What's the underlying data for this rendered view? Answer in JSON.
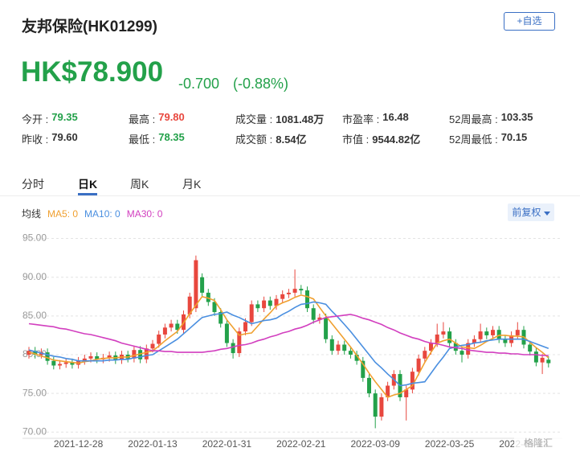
{
  "header": {
    "title": "友邦保险(HK01299)",
    "button": "+自选",
    "price": "HK$78.900",
    "change": "-0.700",
    "change_pct": "(-0.88%)",
    "color": "#23a14a"
  },
  "stats": [
    [
      {
        "label": "今开 :",
        "value": "79.35",
        "color": "#23a14a"
      },
      {
        "label": "最高 :",
        "value": "79.80",
        "color": "#e8473e"
      },
      {
        "label": "成交量 :",
        "value": "1081.48万",
        "color": "#333333"
      },
      {
        "label": "市盈率 :",
        "value": "16.48",
        "color": "#333333"
      },
      {
        "label": "52周最高 :",
        "value": "103.35",
        "color": "#333333"
      }
    ],
    [
      {
        "label": "昨收 :",
        "value": "79.60",
        "color": "#333333"
      },
      {
        "label": "最低 :",
        "value": "78.35",
        "color": "#23a14a"
      },
      {
        "label": "成交额 :",
        "value": "8.54亿",
        "color": "#333333"
      },
      {
        "label": "市值 :",
        "value": "9544.82亿",
        "color": "#333333"
      },
      {
        "label": "52周最低 :",
        "value": "70.15",
        "color": "#333333"
      }
    ]
  ],
  "tabs": [
    "分时",
    "日K",
    "周K",
    "月K"
  ],
  "active_tab": 1,
  "chart_data": {
    "type": "candlestick",
    "legend_title": "均线",
    "adjust_button": "前复权",
    "watermark": "格隆汇",
    "up_color": "#e8473e",
    "down_color": "#23a14a",
    "grid": true,
    "ylim": [
      69.2,
      96.2
    ],
    "yticks": [
      {
        "value": 95,
        "label": "95.00"
      },
      {
        "value": 90,
        "label": "90.00"
      },
      {
        "value": 85,
        "label": "85.00"
      },
      {
        "value": 80,
        "label": "80.00"
      },
      {
        "value": 75,
        "label": "75.00"
      },
      {
        "value": 70,
        "label": "70.00"
      }
    ],
    "categories": [
      null,
      null,
      null,
      null,
      null,
      null,
      null,
      null,
      "2021-12-28",
      null,
      null,
      null,
      null,
      null,
      null,
      null,
      null,
      null,
      null,
      null,
      "2022-01-13",
      null,
      null,
      null,
      null,
      null,
      null,
      null,
      null,
      null,
      null,
      null,
      "2022-01-31",
      null,
      null,
      null,
      null,
      null,
      null,
      null,
      null,
      null,
      null,
      null,
      "2022-02-21",
      null,
      null,
      null,
      null,
      null,
      null,
      null,
      null,
      null,
      null,
      null,
      "2022-03-09",
      null,
      null,
      null,
      null,
      null,
      null,
      null,
      null,
      null,
      null,
      null,
      "2022-03-25",
      null,
      null,
      null,
      null,
      null,
      null,
      null,
      null,
      null,
      null,
      null,
      "2022-04-13",
      null,
      null,
      null,
      null
    ],
    "open": [
      80.0,
      80.5,
      80.0,
      80.3,
      79.2,
      78.6,
      78.8,
      79.0,
      78.7,
      79.2,
      79.5,
      79.8,
      79.4,
      79.6,
      79.9,
      79.3,
      80.0,
      79.5,
      80.6,
      79.4,
      80.8,
      81.4,
      82.6,
      83.5,
      84.0,
      83.2,
      85.2,
      86.0,
      90.0,
      88.0,
      86.8,
      85.5,
      84.0,
      81.5,
      80.2,
      83.0,
      84.2,
      86.5,
      86.0,
      87.0,
      86.3,
      87.2,
      87.8,
      88.0,
      88.5,
      88.3,
      86.0,
      84.5,
      84.8,
      82.0,
      80.5,
      81.3,
      80.5,
      80.0,
      79.2,
      77.0,
      75.0,
      72.0,
      74.5,
      76.0,
      77.5,
      74.5,
      75.5,
      77.8,
      79.5,
      80.5,
      81.5,
      82.6,
      83.0,
      81.5,
      80.5,
      80.0,
      81.5,
      82.0,
      83.0,
      82.5,
      83.2,
      82.0,
      81.5,
      82.5,
      83.2,
      81.3,
      80.4,
      79.0,
      79.35
    ],
    "high": [
      81.0,
      81.0,
      80.8,
      80.8,
      79.7,
      79.3,
      79.5,
      79.5,
      79.7,
      80.0,
      80.3,
      80.3,
      80.1,
      80.4,
      80.4,
      80.5,
      80.5,
      81.1,
      81.1,
      81.3,
      81.9,
      83.1,
      84.0,
      84.5,
      84.5,
      85.7,
      88.0,
      92.8,
      90.5,
      88.5,
      87.3,
      86.0,
      84.5,
      82.0,
      83.5,
      84.7,
      87.0,
      87.0,
      87.5,
      87.5,
      87.7,
      88.3,
      88.5,
      91.0,
      89.0,
      88.8,
      86.5,
      85.3,
      85.3,
      82.5,
      81.8,
      81.8,
      81.0,
      80.5,
      79.7,
      77.5,
      75.5,
      75.0,
      76.5,
      78.0,
      78.0,
      76.0,
      78.3,
      80.0,
      81.0,
      82.0,
      84.0,
      84.2,
      83.5,
      82.0,
      81.0,
      82.0,
      82.5,
      84.0,
      83.5,
      83.7,
      83.7,
      82.5,
      83.0,
      84.2,
      83.7,
      81.8,
      80.9,
      80.1,
      79.8
    ],
    "low": [
      79.5,
      79.5,
      79.5,
      78.7,
      78.1,
      78.1,
      78.3,
      78.2,
      78.2,
      78.7,
      79.0,
      78.9,
      78.9,
      79.1,
      78.8,
      78.8,
      79.0,
      79.0,
      78.9,
      78.9,
      80.3,
      80.9,
      82.1,
      83.0,
      82.7,
      82.7,
      84.7,
      85.5,
      87.5,
      86.3,
      85.0,
      83.5,
      81.0,
      79.5,
      79.7,
      82.5,
      83.7,
      85.5,
      85.5,
      85.8,
      85.8,
      86.7,
      87.3,
      87.5,
      87.8,
      85.5,
      84.0,
      84.0,
      81.5,
      80.0,
      80.0,
      80.0,
      79.5,
      78.7,
      76.5,
      74.5,
      70.5,
      71.5,
      74.0,
      75.5,
      74.0,
      71.5,
      75.0,
      77.3,
      79.0,
      80.0,
      81.0,
      82.1,
      81.0,
      80.0,
      79.0,
      79.5,
      81.0,
      81.5,
      82.0,
      82.0,
      81.5,
      81.0,
      81.0,
      82.0,
      80.8,
      79.9,
      78.5,
      77.5,
      78.35
    ],
    "close": [
      80.5,
      80.0,
      80.3,
      79.2,
      78.6,
      78.8,
      79.0,
      78.7,
      79.2,
      79.5,
      79.8,
      79.4,
      79.6,
      79.9,
      79.3,
      80.0,
      79.5,
      80.6,
      79.4,
      80.8,
      81.4,
      82.6,
      83.5,
      84.0,
      83.2,
      85.2,
      87.5,
      92.2,
      88.0,
      86.8,
      85.5,
      84.0,
      81.5,
      80.2,
      83.0,
      84.2,
      86.5,
      86.0,
      87.0,
      86.3,
      87.2,
      87.8,
      88.0,
      88.5,
      88.3,
      86.0,
      84.5,
      84.8,
      82.0,
      80.5,
      81.3,
      80.5,
      80.0,
      79.2,
      77.0,
      75.0,
      72.0,
      74.5,
      76.0,
      77.5,
      74.5,
      75.5,
      77.8,
      79.5,
      80.5,
      81.5,
      82.6,
      83.0,
      81.5,
      80.5,
      80.0,
      81.5,
      82.0,
      83.0,
      82.5,
      83.2,
      82.0,
      81.5,
      82.5,
      83.2,
      81.3,
      80.4,
      79.0,
      79.6,
      78.9
    ],
    "series": [
      {
        "name": "MA5: 0",
        "color": "#f0a030",
        "values": [
          80.3,
          80.1,
          79.8,
          79.6,
          79.3,
          79.2,
          79.1,
          79.0,
          78.9,
          79.1,
          79.2,
          79.4,
          79.5,
          79.6,
          79.6,
          79.7,
          79.7,
          79.9,
          80.1,
          80.3,
          80.5,
          81.1,
          81.8,
          82.4,
          83.0,
          84.1,
          85.3,
          86.4,
          87.5,
          87.3,
          87.0,
          85.8,
          84.5,
          83.5,
          82.5,
          82.7,
          82.8,
          83.7,
          84.6,
          85.4,
          86.3,
          86.7,
          87.0,
          87.4,
          87.7,
          87.5,
          87.2,
          86.1,
          85.0,
          84.0,
          83.0,
          82.0,
          81.0,
          79.9,
          78.8,
          77.6,
          76.5,
          75.5,
          74.5,
          74.8,
          75.0,
          75.5,
          76.0,
          77.5,
          79.0,
          80.3,
          81.5,
          81.8,
          82.0,
          81.5,
          81.0,
          80.9,
          80.8,
          81.2,
          81.7,
          82.1,
          82.5,
          82.5,
          82.4,
          82.4,
          82.3,
          81.6,
          80.9,
          80.3,
          79.6
        ]
      },
      {
        "name": "MA10: 0",
        "color": "#4a8fe0",
        "values": [
          80.6,
          80.4,
          80.2,
          80.0,
          79.8,
          79.7,
          79.5,
          79.4,
          79.2,
          79.2,
          79.2,
          79.2,
          79.2,
          79.3,
          79.3,
          79.4,
          79.4,
          79.6,
          79.7,
          79.9,
          80.0,
          80.5,
          81.0,
          81.5,
          82.0,
          82.7,
          83.4,
          84.1,
          84.8,
          85.0,
          85.2,
          85.3,
          85.5,
          85.1,
          84.8,
          84.4,
          84.0,
          84.2,
          84.4,
          84.5,
          84.7,
          85.2,
          85.6,
          86.1,
          86.5,
          86.6,
          86.8,
          86.7,
          86.5,
          85.6,
          84.8,
          83.9,
          83.0,
          82.0,
          81.0,
          80.0,
          79.0,
          78.3,
          77.5,
          76.8,
          76.0,
          76.1,
          76.3,
          76.4,
          76.5,
          77.6,
          78.7,
          79.7,
          80.8,
          81.0,
          81.2,
          81.3,
          81.5,
          81.6,
          81.8,
          81.9,
          82.0,
          82.0,
          82.0,
          82.0,
          82.0,
          81.7,
          81.4,
          81.1,
          80.8
        ]
      },
      {
        "name": "MA30: 0",
        "color": "#d23fbf",
        "values": [
          84.0,
          83.9,
          83.8,
          83.7,
          83.6,
          83.4,
          83.3,
          83.1,
          82.9,
          82.7,
          82.6,
          82.4,
          82.2,
          82.0,
          81.8,
          81.5,
          81.3,
          81.1,
          80.9,
          80.7,
          80.5,
          80.5,
          80.4,
          80.4,
          80.3,
          80.3,
          80.3,
          80.3,
          80.3,
          80.4,
          80.5,
          80.7,
          80.8,
          81.0,
          81.2,
          81.3,
          81.5,
          81.8,
          82.0,
          82.3,
          82.5,
          82.8,
          83.0,
          83.3,
          83.5,
          83.8,
          84.2,
          84.5,
          84.8,
          84.9,
          85.0,
          85.1,
          85.2,
          85.0,
          84.7,
          84.5,
          84.2,
          83.9,
          83.5,
          83.2,
          82.8,
          82.5,
          82.2,
          82.0,
          81.7,
          81.5,
          81.4,
          81.2,
          81.0,
          80.9,
          80.8,
          80.6,
          80.5,
          80.4,
          80.3,
          80.3,
          80.2,
          80.2,
          80.1,
          80.1,
          80.0,
          80.0,
          80.0,
          79.9,
          79.9
        ]
      }
    ]
  }
}
